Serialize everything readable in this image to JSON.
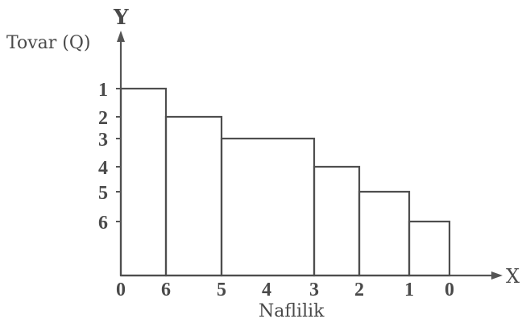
{
  "chart_data": {
    "type": "bar",
    "y_axis_letter": "Y",
    "x_axis_letter": "X",
    "ylabel": "Tovar (Q)",
    "xlabel": "Naflilik",
    "y_ticks": [
      "1",
      "2",
      "3",
      "4",
      "5",
      "6"
    ],
    "x_ticks": [
      "0",
      "6",
      "5",
      "4",
      "3",
      "2",
      "1",
      "0"
    ],
    "categories": [
      "6",
      "5",
      "4",
      "3",
      "2",
      "1"
    ],
    "values": [
      1,
      2,
      3,
      4,
      5,
      6
    ],
    "bars": [
      {
        "x_from": 0,
        "x_to": 1,
        "level": 1
      },
      {
        "x_from": 1,
        "x_to": 2,
        "level": 2
      },
      {
        "x_from": 2,
        "x_to": 4,
        "level": 3
      },
      {
        "x_from": 4,
        "x_to": 5,
        "level": 4
      },
      {
        "x_from": 5,
        "x_to": 6,
        "level": 5
      },
      {
        "x_from": 6,
        "x_to": 7,
        "level": 6
      }
    ],
    "grid": false,
    "colors": {
      "line": "#4e4e4e",
      "text": "#4a4a4a",
      "background": "#ffffff"
    }
  }
}
